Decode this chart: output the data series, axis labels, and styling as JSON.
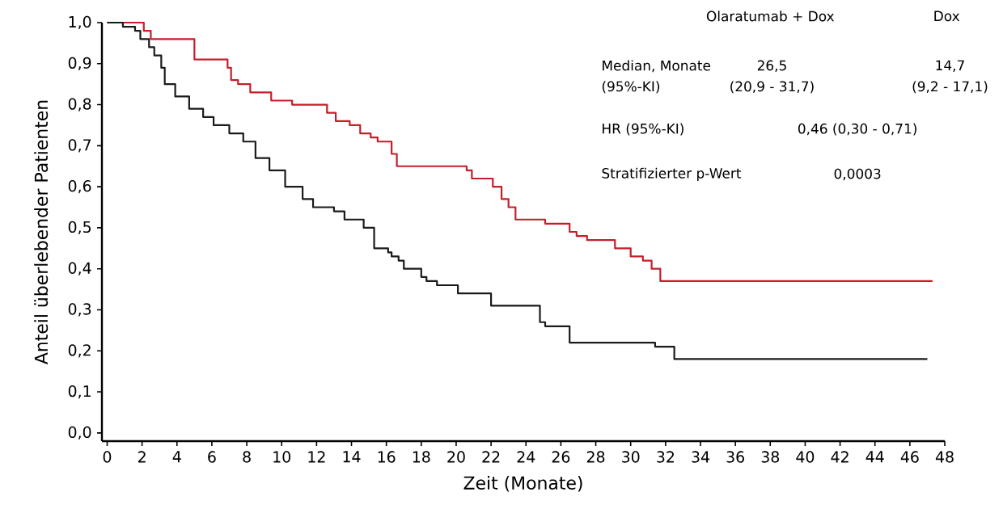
{
  "chart_data": {
    "type": "step",
    "xlabel": "Zeit (Monate)",
    "ylabel": "Anteil überlebender Patienten",
    "xlim": [
      -0.3,
      48
    ],
    "ylim": [
      -0.02,
      1.0
    ],
    "xticks": [
      0,
      2,
      4,
      6,
      8,
      10,
      12,
      14,
      16,
      18,
      20,
      22,
      24,
      26,
      28,
      30,
      32,
      34,
      36,
      38,
      40,
      42,
      44,
      46,
      48
    ],
    "yticks": [
      {
        "value": 0,
        "label": "0,0"
      },
      {
        "value": 0.1,
        "label": "0,1"
      },
      {
        "value": 0.2,
        "label": "0,2"
      },
      {
        "value": 0.3,
        "label": "0,3"
      },
      {
        "value": 0.4,
        "label": "0,4"
      },
      {
        "value": 0.5,
        "label": "0,5"
      },
      {
        "value": 0.6,
        "label": "0,6"
      },
      {
        "value": 0.7,
        "label": "0,7"
      },
      {
        "value": 0.8,
        "label": "0,8"
      },
      {
        "value": 0.9,
        "label": "0,9"
      },
      {
        "value": 1.0,
        "label": "1,0"
      }
    ],
    "grid": false,
    "marker": "none",
    "line_style": "solid",
    "series": [
      {
        "color": "#c41e2a",
        "x": [
          0,
          2.1,
          2.5,
          5.0,
          6.9,
          7.1,
          7.5,
          8.2,
          9.4,
          10.6,
          12.6,
          13.1,
          13.9,
          14.5,
          15.1,
          15.5,
          16.3,
          16.6,
          20.6,
          20.9,
          22.1,
          22.6,
          23.0,
          23.4,
          25.1,
          26.5,
          26.9,
          27.5,
          29.1,
          30.0,
          30.7,
          31.2,
          31.7,
          47.3
        ],
        "values": [
          1.0,
          0.98,
          0.96,
          0.91,
          0.89,
          0.86,
          0.85,
          0.83,
          0.81,
          0.8,
          0.78,
          0.76,
          0.75,
          0.73,
          0.72,
          0.71,
          0.68,
          0.65,
          0.64,
          0.62,
          0.6,
          0.57,
          0.55,
          0.52,
          0.51,
          0.49,
          0.48,
          0.47,
          0.45,
          0.43,
          0.42,
          0.4,
          0.37,
          0.37
        ]
      },
      {
        "color": "#1a1a1a",
        "x": [
          0,
          0.9,
          1.6,
          1.9,
          2.4,
          2.7,
          3.1,
          3.3,
          3.9,
          4.7,
          5.5,
          6.1,
          7.0,
          7.8,
          8.5,
          9.3,
          10.2,
          11.2,
          11.8,
          13.0,
          13.6,
          14.7,
          15.3,
          16.1,
          16.3,
          16.7,
          17.0,
          18.0,
          18.3,
          18.9,
          20.1,
          22.0,
          24.8,
          25.1,
          26.5,
          31.4,
          32.5,
          47.0
        ],
        "values": [
          1.0,
          0.99,
          0.98,
          0.96,
          0.94,
          0.92,
          0.89,
          0.85,
          0.82,
          0.79,
          0.77,
          0.75,
          0.73,
          0.71,
          0.67,
          0.64,
          0.6,
          0.57,
          0.55,
          0.54,
          0.52,
          0.5,
          0.45,
          0.44,
          0.43,
          0.42,
          0.4,
          0.38,
          0.37,
          0.36,
          0.34,
          0.31,
          0.27,
          0.26,
          0.22,
          0.21,
          0.18,
          0.18
        ]
      }
    ],
    "annotations": [
      "Olaratumab + Dox",
      "Dox",
      "Median, Monate",
      "(95%-KI)",
      "26,5",
      "(20,9 - 31,7)",
      "14,7",
      "(9,2 - 17,1)",
      "HR (95%-KI)",
      "0,46 (0,30 - 0,71)",
      "Stratifizierter p-Wert",
      "0,0003"
    ]
  }
}
